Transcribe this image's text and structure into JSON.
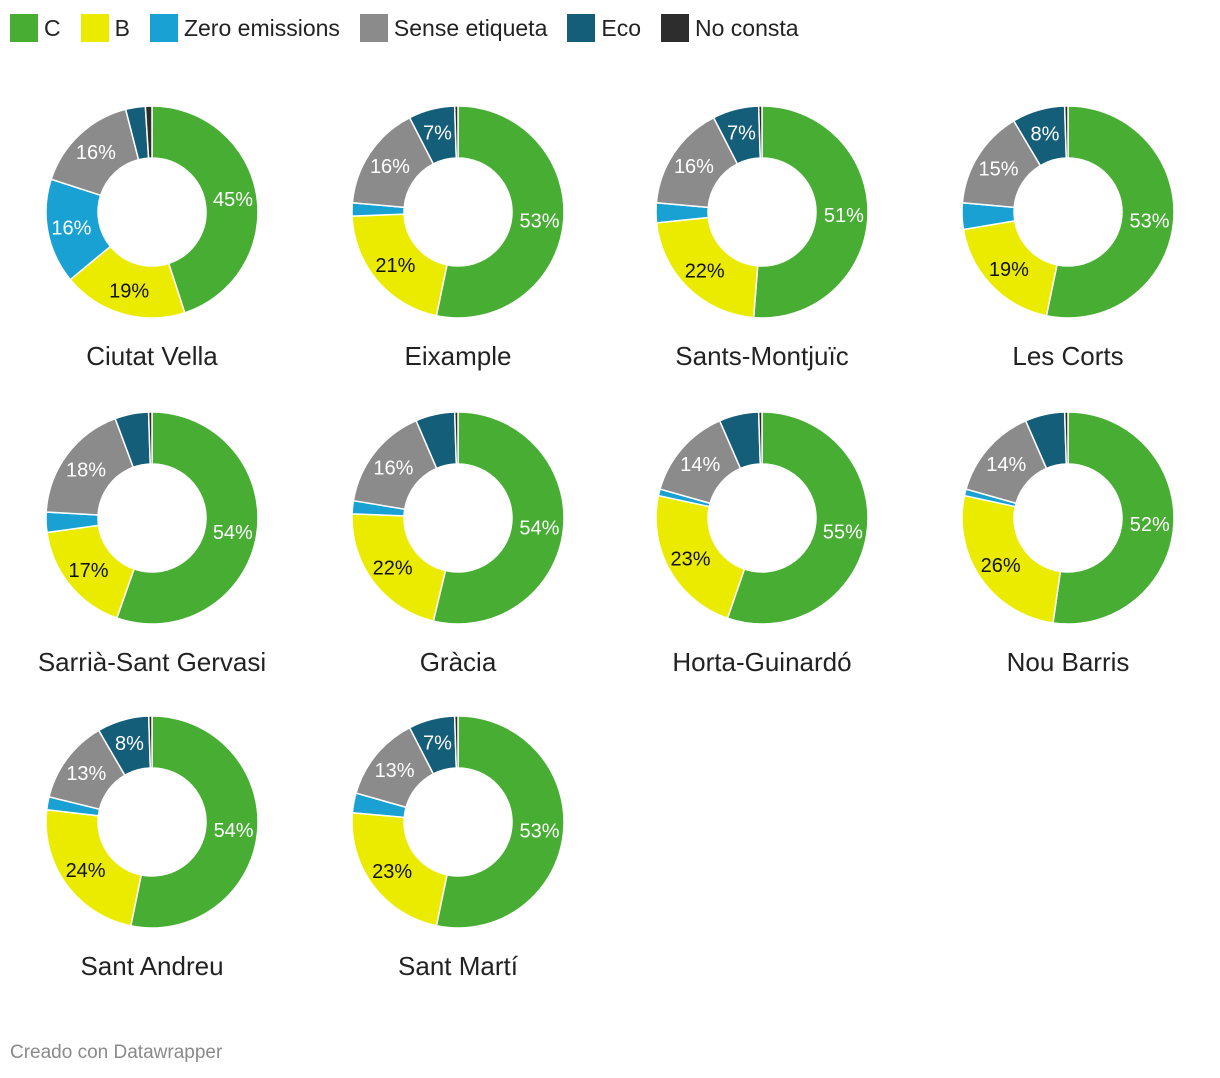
{
  "legend": [
    {
      "label": "C",
      "color": "#47ad33"
    },
    {
      "label": "B",
      "color": "#ebeb00"
    },
    {
      "label": "Zero emissions",
      "color": "#18a1d2"
    },
    {
      "label": "Sense etiqueta",
      "color": "#8b8b8b"
    },
    {
      "label": "Eco",
      "color": "#155e7a"
    },
    {
      "label": "No consta",
      "color": "#2d2d2d"
    }
  ],
  "chart_data": {
    "type": "pie",
    "variant": "donut",
    "series": [
      "C",
      "B",
      "Zero emissions",
      "Sense etiqueta",
      "Eco",
      "No consta"
    ],
    "panels": [
      {
        "title": "Ciutat Vella",
        "values": [
          45,
          19,
          16,
          16,
          3,
          1
        ],
        "labels": [
          "45%",
          "19%",
          "16%",
          "16%",
          "",
          ""
        ]
      },
      {
        "title": "Eixample",
        "values": [
          53,
          21,
          2,
          16,
          7,
          0.5
        ],
        "labels": [
          "53%",
          "21%",
          "",
          "16%",
          "7%",
          ""
        ]
      },
      {
        "title": "Sants-Montjuïc",
        "values": [
          51,
          22,
          3,
          16,
          7,
          0.5
        ],
        "labels": [
          "51%",
          "22%",
          "",
          "16%",
          "7%",
          ""
        ]
      },
      {
        "title": "Les Corts",
        "values": [
          53,
          19,
          4,
          15,
          8,
          0.5
        ],
        "labels": [
          "53%",
          "19%",
          "",
          "15%",
          "8%",
          ""
        ]
      },
      {
        "title": "Sarrià-Sant Gervasi",
        "values": [
          54,
          17,
          3,
          18,
          5,
          0.5
        ],
        "labels": [
          "54%",
          "17%",
          "",
          "18%",
          "",
          ""
        ]
      },
      {
        "title": "Gràcia",
        "values": [
          54,
          22,
          2,
          16,
          6,
          0.5
        ],
        "labels": [
          "54%",
          "22%",
          "",
          "16%",
          "",
          ""
        ]
      },
      {
        "title": "Horta-Guinardó",
        "values": [
          55,
          23,
          1,
          14,
          6,
          0.5
        ],
        "labels": [
          "55%",
          "23%",
          "",
          "14%",
          "",
          ""
        ]
      },
      {
        "title": "Nou Barris",
        "values": [
          52,
          26,
          1,
          14,
          6,
          0.5
        ],
        "labels": [
          "52%",
          "26%",
          "",
          "14%",
          "",
          ""
        ]
      },
      {
        "title": "Sant Andreu",
        "values": [
          54,
          24,
          2,
          13,
          8,
          0.5
        ],
        "labels": [
          "54%",
          "24%",
          "",
          "13%",
          "8%",
          ""
        ]
      },
      {
        "title": "Sant Martí",
        "values": [
          53,
          23,
          3,
          13,
          7,
          0.5
        ],
        "labels": [
          "53%",
          "23%",
          "",
          "13%",
          "7%",
          ""
        ]
      }
    ]
  },
  "footer": {
    "text": "Creado con Datawrapper"
  }
}
